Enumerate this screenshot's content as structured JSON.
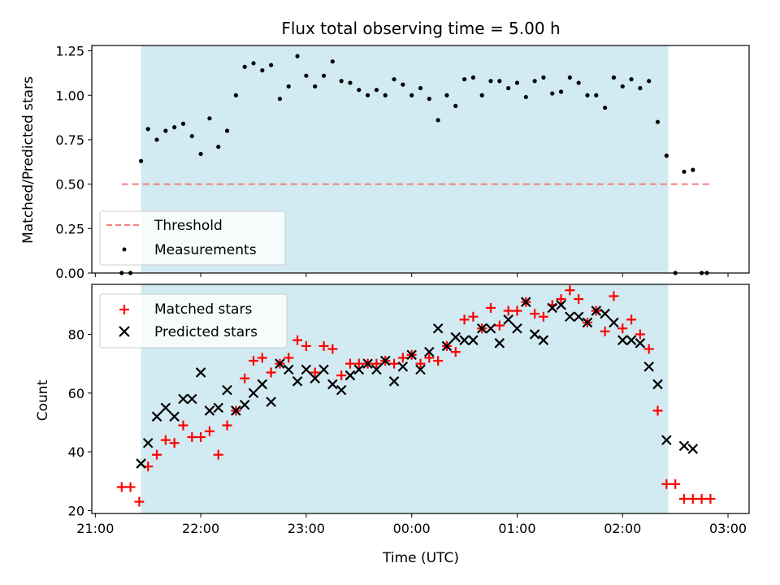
{
  "chart_data": [
    {
      "type": "scatter",
      "title": "Flux total observing time = 5.00 h",
      "xlabel": "",
      "ylabel": "Matched/Predicted stars",
      "xlim": [
        "21:00",
        "03:00"
      ],
      "ylim": [
        0,
        1.28
      ],
      "yticks": [
        "0.00",
        "0.25",
        "0.50",
        "0.75",
        "1.00",
        "1.25"
      ],
      "shaded_range": [
        "21:26",
        "02:26"
      ],
      "shaded_color": "#add8e6",
      "legend_position": "lower-left",
      "series": [
        {
          "name": "Threshold",
          "style": "dashed-line",
          "color": "#f08080",
          "points": [
            [
              "21:15",
              0.5
            ],
            [
              "02:50",
              0.5
            ]
          ]
        },
        {
          "name": "Measurements",
          "style": "dot",
          "color": "#000000",
          "points": [
            [
              "21:15",
              0.0
            ],
            [
              "21:20",
              0.0
            ],
            [
              "21:26",
              0.63
            ],
            [
              "21:30",
              0.81
            ],
            [
              "21:35",
              0.75
            ],
            [
              "21:40",
              0.8
            ],
            [
              "21:45",
              0.82
            ],
            [
              "21:50",
              0.84
            ],
            [
              "21:55",
              0.77
            ],
            [
              "22:00",
              0.67
            ],
            [
              "22:05",
              0.87
            ],
            [
              "22:10",
              0.71
            ],
            [
              "22:15",
              0.8
            ],
            [
              "22:20",
              1.0
            ],
            [
              "22:25",
              1.16
            ],
            [
              "22:30",
              1.18
            ],
            [
              "22:35",
              1.14
            ],
            [
              "22:40",
              1.17
            ],
            [
              "22:45",
              0.98
            ],
            [
              "22:50",
              1.05
            ],
            [
              "22:55",
              1.22
            ],
            [
              "23:00",
              1.11
            ],
            [
              "23:05",
              1.05
            ],
            [
              "23:10",
              1.11
            ],
            [
              "23:15",
              1.19
            ],
            [
              "23:20",
              1.08
            ],
            [
              "23:25",
              1.07
            ],
            [
              "23:30",
              1.03
            ],
            [
              "23:35",
              1.0
            ],
            [
              "23:40",
              1.03
            ],
            [
              "23:45",
              1.0
            ],
            [
              "23:50",
              1.09
            ],
            [
              "23:55",
              1.06
            ],
            [
              "00:00",
              1.0
            ],
            [
              "00:05",
              1.04
            ],
            [
              "00:10",
              0.98
            ],
            [
              "00:15",
              0.86
            ],
            [
              "00:20",
              1.0
            ],
            [
              "00:25",
              0.94
            ],
            [
              "00:30",
              1.09
            ],
            [
              "00:35",
              1.1
            ],
            [
              "00:40",
              1.0
            ],
            [
              "00:45",
              1.08
            ],
            [
              "00:50",
              1.08
            ],
            [
              "00:55",
              1.04
            ],
            [
              "01:00",
              1.07
            ],
            [
              "01:05",
              0.99
            ],
            [
              "01:10",
              1.08
            ],
            [
              "01:15",
              1.1
            ],
            [
              "01:20",
              1.01
            ],
            [
              "01:25",
              1.02
            ],
            [
              "01:30",
              1.1
            ],
            [
              "01:35",
              1.07
            ],
            [
              "01:40",
              1.0
            ],
            [
              "01:45",
              1.0
            ],
            [
              "01:50",
              0.93
            ],
            [
              "01:55",
              1.1
            ],
            [
              "02:00",
              1.05
            ],
            [
              "02:05",
              1.09
            ],
            [
              "02:10",
              1.04
            ],
            [
              "02:15",
              1.08
            ],
            [
              "02:20",
              0.85
            ],
            [
              "02:25",
              0.66
            ],
            [
              "02:30",
              0.0
            ],
            [
              "02:35",
              0.57
            ],
            [
              "02:40",
              0.58
            ],
            [
              "02:45",
              0.0
            ],
            [
              "02:48",
              0.0
            ]
          ]
        }
      ]
    },
    {
      "type": "scatter",
      "title": "",
      "xlabel": "Time (UTC)",
      "ylabel": "Count",
      "xlim": [
        "21:00",
        "03:00"
      ],
      "ylim": [
        19,
        97
      ],
      "xticks": [
        "21:00",
        "22:00",
        "23:00",
        "00:00",
        "01:00",
        "02:00",
        "03:00"
      ],
      "yticks": [
        "20",
        "40",
        "60",
        "80"
      ],
      "shaded_range": [
        "21:26",
        "02:26"
      ],
      "shaded_color": "#add8e6",
      "legend_position": "upper-left",
      "series": [
        {
          "name": "Matched stars",
          "marker": "plus",
          "color": "#ff0000",
          "points": [
            [
              "21:15",
              28
            ],
            [
              "21:20",
              28
            ],
            [
              "21:25",
              23
            ],
            [
              "21:30",
              35
            ],
            [
              "21:35",
              39
            ],
            [
              "21:40",
              44
            ],
            [
              "21:45",
              43
            ],
            [
              "21:50",
              49
            ],
            [
              "21:55",
              45
            ],
            [
              "22:00",
              45
            ],
            [
              "22:05",
              47
            ],
            [
              "22:10",
              39
            ],
            [
              "22:15",
              49
            ],
            [
              "22:20",
              54
            ],
            [
              "22:25",
              65
            ],
            [
              "22:30",
              71
            ],
            [
              "22:35",
              72
            ],
            [
              "22:40",
              67
            ],
            [
              "22:45",
              70
            ],
            [
              "22:50",
              72
            ],
            [
              "22:55",
              78
            ],
            [
              "23:00",
              76
            ],
            [
              "23:05",
              67
            ],
            [
              "23:10",
              76
            ],
            [
              "23:15",
              75
            ],
            [
              "23:20",
              66
            ],
            [
              "23:25",
              70
            ],
            [
              "23:30",
              70
            ],
            [
              "23:35",
              70
            ],
            [
              "23:40",
              70
            ],
            [
              "23:45",
              71
            ],
            [
              "23:50",
              70
            ],
            [
              "23:55",
              72
            ],
            [
              "00:00",
              73
            ],
            [
              "00:05",
              70
            ],
            [
              "00:10",
              72
            ],
            [
              "00:15",
              71
            ],
            [
              "00:20",
              76
            ],
            [
              "00:25",
              74
            ],
            [
              "00:30",
              85
            ],
            [
              "00:35",
              86
            ],
            [
              "00:40",
              82
            ],
            [
              "00:45",
              89
            ],
            [
              "00:50",
              83
            ],
            [
              "00:55",
              88
            ],
            [
              "01:00",
              88
            ],
            [
              "01:05",
              91
            ],
            [
              "01:10",
              87
            ],
            [
              "01:15",
              86
            ],
            [
              "01:20",
              90
            ],
            [
              "01:25",
              92
            ],
            [
              "01:30",
              95
            ],
            [
              "01:35",
              92
            ],
            [
              "01:40",
              84
            ],
            [
              "01:45",
              88
            ],
            [
              "01:50",
              81
            ],
            [
              "01:55",
              93
            ],
            [
              "02:00",
              82
            ],
            [
              "02:05",
              85
            ],
            [
              "02:10",
              80
            ],
            [
              "02:15",
              75
            ],
            [
              "02:20",
              54
            ],
            [
              "02:25",
              29
            ],
            [
              "02:30",
              29
            ],
            [
              "02:35",
              24
            ],
            [
              "02:40",
              24
            ],
            [
              "02:45",
              24
            ],
            [
              "02:50",
              24
            ]
          ]
        },
        {
          "name": "Predicted stars",
          "marker": "x",
          "color": "#000000",
          "points": [
            [
              "21:26",
              36
            ],
            [
              "21:30",
              43
            ],
            [
              "21:35",
              52
            ],
            [
              "21:40",
              55
            ],
            [
              "21:45",
              52
            ],
            [
              "21:50",
              58
            ],
            [
              "21:55",
              58
            ],
            [
              "22:00",
              67
            ],
            [
              "22:05",
              54
            ],
            [
              "22:10",
              55
            ],
            [
              "22:15",
              61
            ],
            [
              "22:20",
              54
            ],
            [
              "22:25",
              56
            ],
            [
              "22:30",
              60
            ],
            [
              "22:35",
              63
            ],
            [
              "22:40",
              57
            ],
            [
              "22:45",
              70
            ],
            [
              "22:50",
              68
            ],
            [
              "22:55",
              64
            ],
            [
              "23:00",
              68
            ],
            [
              "23:05",
              65
            ],
            [
              "23:10",
              68
            ],
            [
              "23:15",
              63
            ],
            [
              "23:20",
              61
            ],
            [
              "23:25",
              66
            ],
            [
              "23:30",
              68
            ],
            [
              "23:35",
              70
            ],
            [
              "23:40",
              68
            ],
            [
              "23:45",
              71
            ],
            [
              "23:50",
              64
            ],
            [
              "23:55",
              69
            ],
            [
              "00:00",
              73
            ],
            [
              "00:05",
              68
            ],
            [
              "00:10",
              74
            ],
            [
              "00:15",
              82
            ],
            [
              "00:20",
              76
            ],
            [
              "00:25",
              79
            ],
            [
              "00:30",
              78
            ],
            [
              "00:35",
              78
            ],
            [
              "00:40",
              82
            ],
            [
              "00:45",
              82
            ],
            [
              "00:50",
              77
            ],
            [
              "00:55",
              85
            ],
            [
              "01:00",
              82
            ],
            [
              "01:05",
              91
            ],
            [
              "01:10",
              80
            ],
            [
              "01:15",
              78
            ],
            [
              "01:20",
              89
            ],
            [
              "01:25",
              90
            ],
            [
              "01:30",
              86
            ],
            [
              "01:35",
              86
            ],
            [
              "01:40",
              84
            ],
            [
              "01:45",
              88
            ],
            [
              "01:50",
              87
            ],
            [
              "01:55",
              84
            ],
            [
              "02:00",
              78
            ],
            [
              "02:05",
              78
            ],
            [
              "02:10",
              77
            ],
            [
              "02:15",
              69
            ],
            [
              "02:20",
              63
            ],
            [
              "02:25",
              44
            ],
            [
              "02:35",
              42
            ],
            [
              "02:40",
              41
            ]
          ]
        }
      ]
    }
  ]
}
